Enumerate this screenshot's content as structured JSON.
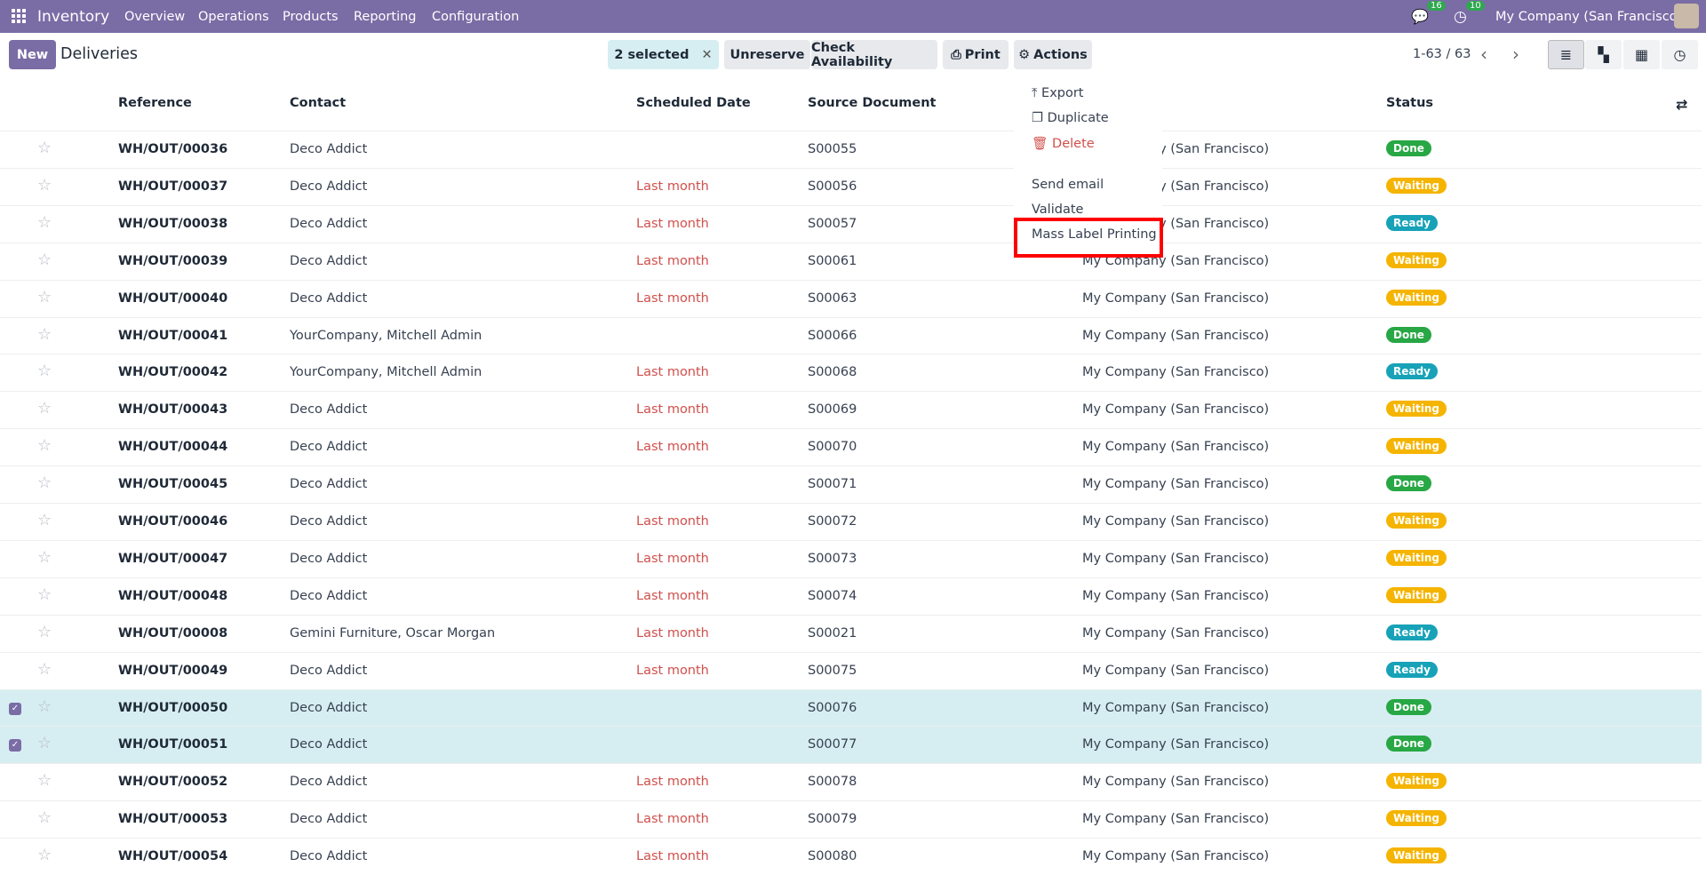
{
  "app": {
    "name": "Inventory",
    "menu": [
      "Overview",
      "Operations",
      "Products",
      "Reporting",
      "Configuration"
    ],
    "messages_count": "16",
    "activities_count": "10",
    "company": "My Company (San Francisco)"
  },
  "toolbar": {
    "new_label": "New",
    "title": "Deliveries",
    "selected": "2 selected",
    "unreserve": "Unreserve",
    "check_availability": "Check Availability",
    "print": "Print",
    "actions": "Actions",
    "pager": "1-63 / 63"
  },
  "columns": {
    "reference": "Reference",
    "contact": "Contact",
    "scheduled_date": "Scheduled Date",
    "source_document": "Source Document",
    "status": "Status"
  },
  "actions_menu": {
    "export": "Export",
    "duplicate": "Duplicate",
    "delete": "Delete",
    "send_email": "Send email",
    "validate": "Validate",
    "mass_label_printing": "Mass Label Printing"
  },
  "status_colors": {
    "Done": "#28a745",
    "Waiting": "#f5b400",
    "Ready": "#17a2b8"
  },
  "rows": [
    {
      "ref": "WH/OUT/00036",
      "contact": "Deco Addict",
      "date": "",
      "source": "S00055",
      "company": "My Company (San Francisco)",
      "status": "Done",
      "selected": false
    },
    {
      "ref": "WH/OUT/00037",
      "contact": "Deco Addict",
      "date": "Last month",
      "source": "S00056",
      "company": "My Company (San Francisco)",
      "status": "Waiting",
      "selected": false
    },
    {
      "ref": "WH/OUT/00038",
      "contact": "Deco Addict",
      "date": "Last month",
      "source": "S00057",
      "company": "My Company (San Francisco)",
      "status": "Ready",
      "selected": false
    },
    {
      "ref": "WH/OUT/00039",
      "contact": "Deco Addict",
      "date": "Last month",
      "source": "S00061",
      "company": "My Company (San Francisco)",
      "status": "Waiting",
      "selected": false
    },
    {
      "ref": "WH/OUT/00040",
      "contact": "Deco Addict",
      "date": "Last month",
      "source": "S00063",
      "company": "My Company (San Francisco)",
      "status": "Waiting",
      "selected": false
    },
    {
      "ref": "WH/OUT/00041",
      "contact": "YourCompany, Mitchell Admin",
      "date": "",
      "source": "S00066",
      "company": "My Company (San Francisco)",
      "status": "Done",
      "selected": false
    },
    {
      "ref": "WH/OUT/00042",
      "contact": "YourCompany, Mitchell Admin",
      "date": "Last month",
      "source": "S00068",
      "company": "My Company (San Francisco)",
      "status": "Ready",
      "selected": false
    },
    {
      "ref": "WH/OUT/00043",
      "contact": "Deco Addict",
      "date": "Last month",
      "source": "S00069",
      "company": "My Company (San Francisco)",
      "status": "Waiting",
      "selected": false
    },
    {
      "ref": "WH/OUT/00044",
      "contact": "Deco Addict",
      "date": "Last month",
      "source": "S00070",
      "company": "My Company (San Francisco)",
      "status": "Waiting",
      "selected": false
    },
    {
      "ref": "WH/OUT/00045",
      "contact": "Deco Addict",
      "date": "",
      "source": "S00071",
      "company": "My Company (San Francisco)",
      "status": "Done",
      "selected": false
    },
    {
      "ref": "WH/OUT/00046",
      "contact": "Deco Addict",
      "date": "Last month",
      "source": "S00072",
      "company": "My Company (San Francisco)",
      "status": "Waiting",
      "selected": false
    },
    {
      "ref": "WH/OUT/00047",
      "contact": "Deco Addict",
      "date": "Last month",
      "source": "S00073",
      "company": "My Company (San Francisco)",
      "status": "Waiting",
      "selected": false
    },
    {
      "ref": "WH/OUT/00048",
      "contact": "Deco Addict",
      "date": "Last month",
      "source": "S00074",
      "company": "My Company (San Francisco)",
      "status": "Waiting",
      "selected": false
    },
    {
      "ref": "WH/OUT/00008",
      "contact": "Gemini Furniture, Oscar Morgan",
      "date": "Last month",
      "source": "S00021",
      "company": "My Company (San Francisco)",
      "status": "Ready",
      "selected": false
    },
    {
      "ref": "WH/OUT/00049",
      "contact": "Deco Addict",
      "date": "Last month",
      "source": "S00075",
      "company": "My Company (San Francisco)",
      "status": "Ready",
      "selected": false
    },
    {
      "ref": "WH/OUT/00050",
      "contact": "Deco Addict",
      "date": "",
      "source": "S00076",
      "company": "My Company (San Francisco)",
      "status": "Done",
      "selected": true
    },
    {
      "ref": "WH/OUT/00051",
      "contact": "Deco Addict",
      "date": "",
      "source": "S00077",
      "company": "My Company (San Francisco)",
      "status": "Done",
      "selected": true
    },
    {
      "ref": "WH/OUT/00052",
      "contact": "Deco Addict",
      "date": "Last month",
      "source": "S00078",
      "company": "My Company (San Francisco)",
      "status": "Waiting",
      "selected": false
    },
    {
      "ref": "WH/OUT/00053",
      "contact": "Deco Addict",
      "date": "Last month",
      "source": "S00079",
      "company": "My Company (San Francisco)",
      "status": "Waiting",
      "selected": false
    },
    {
      "ref": "WH/OUT/00054",
      "contact": "Deco Addict",
      "date": "Last month",
      "source": "S00080",
      "company": "My Company (San Francisco)",
      "status": "Waiting",
      "selected": false
    }
  ]
}
